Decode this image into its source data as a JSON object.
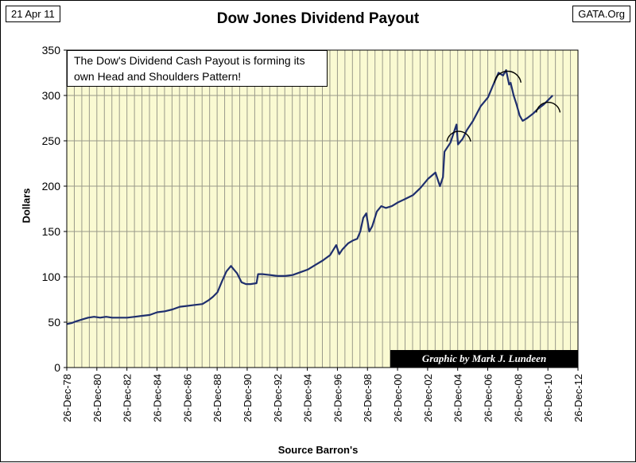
{
  "chart_data": {
    "type": "line",
    "title": "Dow Jones Dividend Payout",
    "date_label": "21 Apr 11",
    "source_label": "GATA.Org",
    "xlabel": "Source Barron's",
    "ylabel": "Dollars",
    "annotation": "The Dow's Dividend Cash Payout is forming its own Head and Shoulders Pattern!",
    "credit": "Graphic by Mark J. Lundeen",
    "ylim": [
      0,
      350
    ],
    "xlim": [
      1978.98,
      2012.98
    ],
    "grid": true,
    "yticks": [
      "0",
      "50",
      "100",
      "150",
      "200",
      "250",
      "300",
      "350"
    ],
    "xticks": [
      "26-Dec-78",
      "26-Dec-80",
      "26-Dec-82",
      "26-Dec-84",
      "26-Dec-86",
      "26-Dec-88",
      "26-Dec-90",
      "26-Dec-92",
      "26-Dec-94",
      "26-Dec-96",
      "26-Dec-98",
      "26-Dec-00",
      "26-Dec-02",
      "26-Dec-04",
      "26-Dec-06",
      "26-Dec-08",
      "26-Dec-10",
      "26-Dec-12"
    ],
    "line_color": "#1f2f6e",
    "plot_bg": "#fafad2",
    "series": [
      {
        "name": "Dow Jones Dividend Payout",
        "x": [
          1979.0,
          1979.3,
          1979.6,
          1980.0,
          1980.4,
          1980.8,
          1981.2,
          1981.6,
          1982.0,
          1982.5,
          1983.0,
          1983.5,
          1984.0,
          1984.5,
          1985.0,
          1985.5,
          1986.0,
          1986.5,
          1987.0,
          1987.5,
          1988.0,
          1988.4,
          1988.7,
          1989.0,
          1989.3,
          1989.6,
          1989.9,
          1990.1,
          1990.3,
          1990.6,
          1990.9,
          1991.2,
          1991.6,
          1991.7,
          1992.0,
          1992.5,
          1993.0,
          1993.5,
          1994.0,
          1994.5,
          1995.0,
          1995.5,
          1996.0,
          1996.5,
          1996.9,
          1997.1,
          1997.3,
          1997.7,
          1998.0,
          1998.3,
          1998.5,
          1998.7,
          1998.9,
          1999.1,
          1999.3,
          1999.6,
          1999.9,
          2000.2,
          2000.6,
          2001.0,
          2001.5,
          2002.0,
          2002.5,
          2003.0,
          2003.5,
          2003.8,
          2004.0,
          2004.1,
          2004.5,
          2004.9,
          2005.0,
          2005.3,
          2005.6,
          2006.0,
          2006.5,
          2007.0,
          2007.3,
          2007.7,
          2008.0,
          2008.2,
          2008.4,
          2008.5,
          2008.7,
          2008.9,
          2009.1,
          2009.3,
          2009.6,
          2010.0,
          2010.3,
          2010.7,
          2011.0,
          2011.3
        ],
        "values": [
          48,
          49,
          51,
          53,
          55,
          56,
          55,
          56,
          55,
          55,
          55,
          56,
          57,
          58,
          61,
          62,
          64,
          67,
          68,
          69,
          70,
          74,
          78,
          83,
          95,
          106,
          112,
          108,
          104,
          94,
          92,
          92,
          93,
          103,
          103,
          102,
          101,
          101,
          102,
          105,
          108,
          113,
          118,
          124,
          135,
          125,
          130,
          137,
          140,
          142,
          150,
          165,
          170,
          150,
          156,
          172,
          178,
          176,
          178,
          182,
          186,
          190,
          198,
          208,
          215,
          200,
          210,
          238,
          248,
          268,
          246,
          252,
          262,
          272,
          288,
          298,
          310,
          325,
          322,
          328,
          312,
          314,
          300,
          290,
          278,
          272,
          275,
          280,
          285,
          290,
          295,
          300
        ]
      }
    ],
    "humps": [
      {
        "x_center": 2005.05,
        "y_center": 258,
        "half_width": 0.8
      },
      {
        "x_center": 2008.3,
        "y_center": 323,
        "half_width": 0.9
      },
      {
        "x_center": 2011.0,
        "y_center": 290,
        "half_width": 0.8
      }
    ]
  }
}
